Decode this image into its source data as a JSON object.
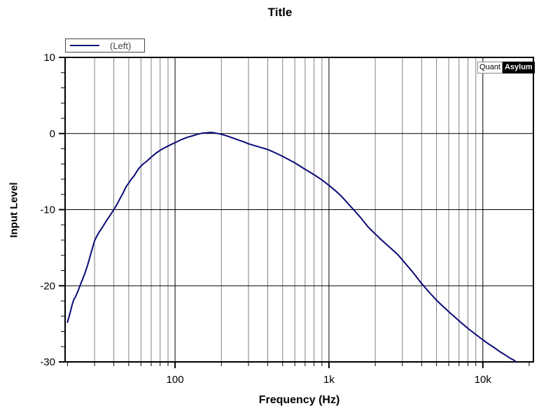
{
  "colors": {
    "background": "#ffffff",
    "curve": "#0a0a78",
    "minor_grid": "#808080",
    "major_grid": "#000000",
    "axis_border": "#000000",
    "tick_label": "#000000",
    "legend_text": "#444444"
  },
  "branding": {
    "quant": "Quant",
    "asylum": "Asylum"
  },
  "chart_data": {
    "type": "line",
    "title": "Title",
    "xlabel": "Frequency (Hz)",
    "ylabel": "Input Level",
    "x_scale": "log",
    "xlim": [
      19.3,
      21300
    ],
    "ylim": [
      -30,
      10
    ],
    "grid": true,
    "legend_position": "top-left-above-plot",
    "y_ticks": [
      {
        "value": 10,
        "label": "10"
      },
      {
        "value": 0,
        "label": "0"
      },
      {
        "value": -10,
        "label": "-10"
      },
      {
        "value": -20,
        "label": "-20"
      },
      {
        "value": -30,
        "label": "-30"
      }
    ],
    "y_minor_tick_values": [
      8,
      6,
      4,
      2,
      -2,
      -4,
      -6,
      -8,
      -12,
      -14,
      -16,
      -18,
      -22,
      -24,
      -26,
      -28
    ],
    "y_major_gridline_values": [
      0,
      -10,
      -20
    ],
    "x_ticks": [
      {
        "value": 100,
        "label": "100"
      },
      {
        "value": 1000,
        "label": "1k"
      },
      {
        "value": 10000,
        "label": "10k"
      }
    ],
    "x_minor_tick_values": [
      20,
      30,
      40,
      50,
      60,
      70,
      80,
      90,
      200,
      300,
      400,
      500,
      600,
      700,
      800,
      900,
      2000,
      3000,
      4000,
      5000,
      6000,
      7000,
      8000,
      9000,
      20000
    ],
    "x_minor_gridline_values": [
      30,
      40,
      50,
      60,
      70,
      80,
      90,
      200,
      300,
      400,
      500,
      600,
      700,
      800,
      900,
      2000,
      3000,
      4000,
      5000,
      6000,
      7000,
      8000,
      9000
    ],
    "x_major_gridline_values": [
      100,
      1000,
      10000
    ],
    "series": [
      {
        "name": "(Left)",
        "color": "#0a0a78",
        "points": [
          [
            20,
            -24.8
          ],
          [
            20.5,
            -24.0
          ],
          [
            21,
            -23.2
          ],
          [
            21.5,
            -22.4
          ],
          [
            22,
            -21.8
          ],
          [
            22.6,
            -21.4
          ],
          [
            23.5,
            -20.6
          ],
          [
            24,
            -20.1
          ],
          [
            25,
            -19.2
          ],
          [
            26,
            -18.3
          ],
          [
            27,
            -17.3
          ],
          [
            28,
            -16.2
          ],
          [
            29,
            -15.1
          ],
          [
            30,
            -14.1
          ],
          [
            31,
            -13.5
          ],
          [
            32,
            -13.0
          ],
          [
            34,
            -12.2
          ],
          [
            36,
            -11.4
          ],
          [
            38,
            -10.7
          ],
          [
            40,
            -10.0
          ],
          [
            42,
            -9.3
          ],
          [
            44,
            -8.5
          ],
          [
            46,
            -7.8
          ],
          [
            48,
            -7.0
          ],
          [
            50,
            -6.5
          ],
          [
            52,
            -6.0
          ],
          [
            54,
            -5.6
          ],
          [
            56,
            -5.1
          ],
          [
            58,
            -4.6
          ],
          [
            60,
            -4.3
          ],
          [
            62,
            -4.0
          ],
          [
            65,
            -3.7
          ],
          [
            70,
            -3.1
          ],
          [
            75,
            -2.6
          ],
          [
            80,
            -2.2
          ],
          [
            85,
            -1.9
          ],
          [
            90,
            -1.65
          ],
          [
            95,
            -1.4
          ],
          [
            100,
            -1.2
          ],
          [
            110,
            -0.8
          ],
          [
            120,
            -0.5
          ],
          [
            130,
            -0.3
          ],
          [
            140,
            -0.1
          ],
          [
            150,
            0.05
          ],
          [
            160,
            0.1
          ],
          [
            170,
            0.15
          ],
          [
            180,
            0.1
          ],
          [
            190,
            0.0
          ],
          [
            200,
            -0.1
          ],
          [
            220,
            -0.35
          ],
          [
            250,
            -0.75
          ],
          [
            280,
            -1.1
          ],
          [
            300,
            -1.35
          ],
          [
            350,
            -1.75
          ],
          [
            400,
            -2.1
          ],
          [
            450,
            -2.55
          ],
          [
            500,
            -3.0
          ],
          [
            550,
            -3.45
          ],
          [
            600,
            -3.85
          ],
          [
            700,
            -4.7
          ],
          [
            800,
            -5.4
          ],
          [
            900,
            -6.1
          ],
          [
            1000,
            -6.8
          ],
          [
            1100,
            -7.5
          ],
          [
            1200,
            -8.2
          ],
          [
            1400,
            -9.7
          ],
          [
            1600,
            -11.0
          ],
          [
            1800,
            -12.3
          ],
          [
            2000,
            -13.2
          ],
          [
            2200,
            -14.0
          ],
          [
            2500,
            -15.0
          ],
          [
            2800,
            -15.9
          ],
          [
            3000,
            -16.6
          ],
          [
            3500,
            -18.2
          ],
          [
            4000,
            -19.7
          ],
          [
            4500,
            -20.9
          ],
          [
            5000,
            -21.9
          ],
          [
            5500,
            -22.7
          ],
          [
            6000,
            -23.4
          ],
          [
            7000,
            -24.6
          ],
          [
            8000,
            -25.6
          ],
          [
            9000,
            -26.4
          ],
          [
            10000,
            -27.1
          ],
          [
            11000,
            -27.7
          ],
          [
            12000,
            -28.2
          ],
          [
            13000,
            -28.7
          ],
          [
            14000,
            -29.1
          ],
          [
            15000,
            -29.5
          ],
          [
            16000,
            -29.8
          ],
          [
            17000,
            -30.3
          ]
        ]
      }
    ]
  }
}
